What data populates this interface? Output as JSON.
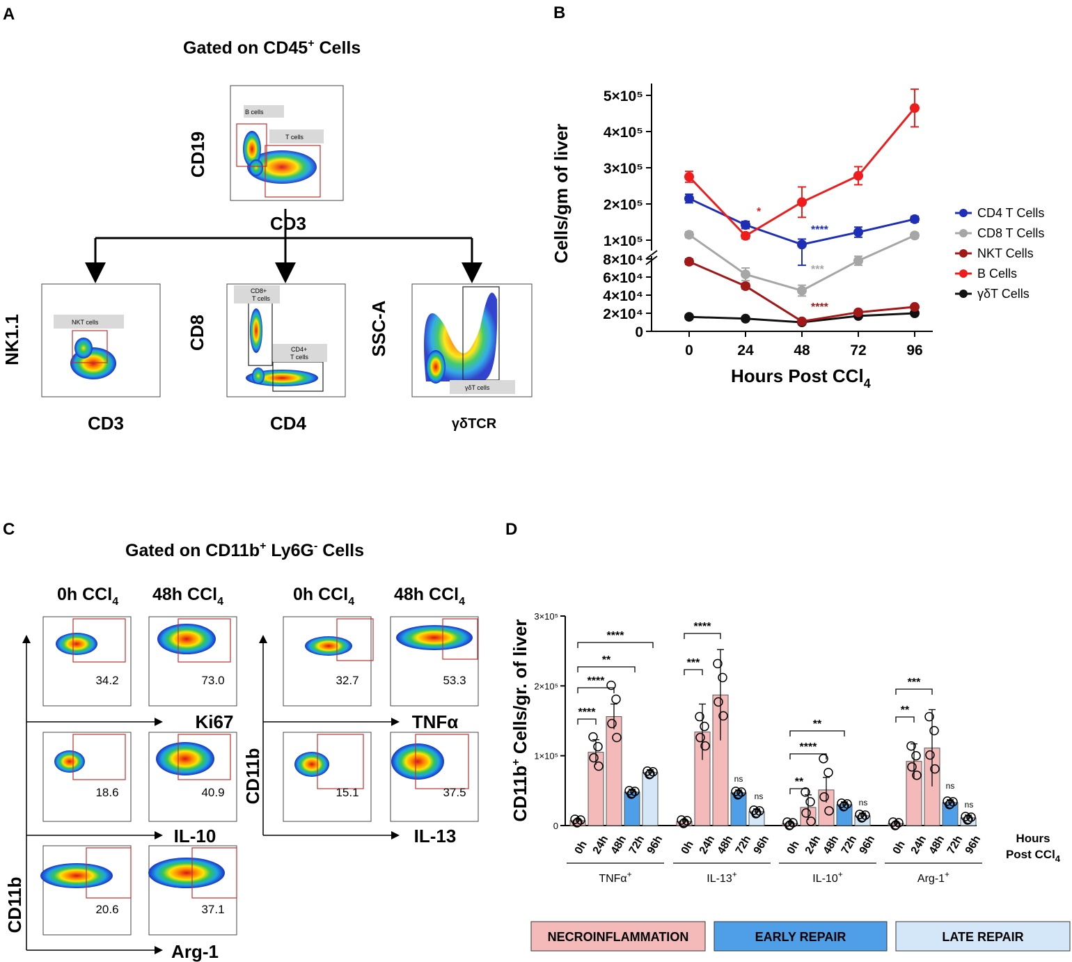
{
  "panels": {
    "a": "A",
    "b": "B",
    "c": "C",
    "d": "D"
  },
  "panel_a": {
    "title_main": "Gated on CD45",
    "title_sup": "+",
    "title_tail": " Cells",
    "top_plot": {
      "y": "CD19",
      "x": "CD3",
      "gate1": "B cells",
      "gate2": "T cells"
    },
    "plot_nk": {
      "y": "NK1.1",
      "x": "CD3",
      "gate1": "NKT cells"
    },
    "plot_cd8": {
      "y": "CD8",
      "x": "CD4",
      "gate1a": "CD8+",
      "gate1b": "T cells",
      "gate2a": "CD4+",
      "gate2b": "T cells"
    },
    "plot_gd": {
      "y": "SSC-A",
      "x": "γδTCR",
      "gate1": "γδT cells"
    }
  },
  "panel_c": {
    "title_a": "Gated on CD11b",
    "title_sup1": "+",
    "title_b": " Ly6G",
    "title_sup2": "-",
    "title_c": " Cells",
    "col_0h": "0h CCl",
    "col_48h": "48h CCl",
    "sub4": "4",
    "y_label": "CD11b",
    "markers": [
      "Ki67",
      "IL-10",
      "Arg-1",
      "TNFα",
      "IL-13"
    ],
    "values": {
      "ki67_0h": "34.2",
      "ki67_48h": "73.0",
      "il10_0h": "18.6",
      "il10_48h": "40.9",
      "arg1_0h": "20.6",
      "arg1_48h": "37.1",
      "tnfa_0h": "32.7",
      "tnfa_48h": "53.3",
      "il13_0h": "15.1",
      "il13_48h": "37.5"
    }
  },
  "colors": {
    "cd4": "#1f2fb5",
    "cd8": "#a6a6a6",
    "nkt": "#a01818",
    "b": "#ee1c1c",
    "gd": "#111111",
    "necro": "#f4b9b9",
    "early": "#4f9fe8",
    "late": "#d4e7f8"
  },
  "chart_data": [
    {
      "type": "line",
      "title": "",
      "xlabel": "Hours Post CCl4",
      "ylabel": "Cells/gm of liver",
      "x": [
        0,
        24,
        48,
        72,
        96
      ],
      "y_ticks_upper": [
        "1×10⁵",
        "2×10⁵",
        "3×10⁵",
        "4×10⁵",
        "5×10⁵"
      ],
      "y_ticks_lower": [
        "0",
        "2×10⁴",
        "4×10⁴",
        "6×10⁴",
        "8×10⁴"
      ],
      "x_ticks": [
        "0",
        "24",
        "48",
        "72",
        "96"
      ],
      "xlabel_main": "Hours Post CCl",
      "xlabel_sub": "4",
      "series": [
        {
          "name": "CD4 T Cells",
          "values": [
            215000,
            142000,
            88000,
            122000,
            158000
          ],
          "err": [
            12000,
            10000,
            15000,
            14000,
            8000
          ]
        },
        {
          "name": "CD8 T Cells",
          "values": [
            115000,
            63000,
            45000,
            78000,
            113000
          ],
          "err": [
            8000,
            7000,
            6000,
            5000,
            7000
          ]
        },
        {
          "name": "NKT Cells",
          "values": [
            77000,
            50000,
            11000,
            21000,
            27000
          ],
          "err": [
            3000,
            3000,
            2000,
            2000,
            2000
          ]
        },
        {
          "name": "B Cells",
          "values": [
            275000,
            112000,
            205000,
            278000,
            465000
          ],
          "err": [
            15000,
            8000,
            42000,
            25000,
            52000
          ]
        },
        {
          "name": "γδT Cells",
          "values": [
            16000,
            14000,
            10000,
            17000,
            20000
          ],
          "err": [
            1000,
            1000,
            1000,
            1000,
            1000
          ]
        }
      ],
      "annotations": [
        "*",
        "****",
        "***",
        "****"
      ]
    },
    {
      "type": "bar",
      "title": "",
      "ylabel_main": "CD11b",
      "ylabel_sup": "+",
      "ylabel_tail": " Cells/gr. of liver",
      "y_ticks": [
        "0",
        "1×10⁵",
        "2×10⁵",
        "3×10⁵"
      ],
      "ylim": [
        0,
        300000
      ],
      "categories": [
        "0h",
        "24h",
        "48h",
        "72h",
        "96h"
      ],
      "x_note_a": "Hours",
      "x_note_b": "Post CCl",
      "x_note_sub": "4",
      "groups": [
        {
          "name": "TNFα",
          "sup": "+",
          "values": [
            7000,
            105000,
            156000,
            48000,
            76000
          ],
          "sig": [
            "****",
            "****",
            "**",
            "****"
          ]
        },
        {
          "name": "IL-13",
          "sup": "+",
          "values": [
            6000,
            134000,
            187000,
            47000,
            20000
          ],
          "sig": [
            "***",
            "****",
            "ns",
            "ns"
          ]
        },
        {
          "name": "IL-10",
          "sup": "+",
          "values": [
            3000,
            26000,
            51000,
            30000,
            14000
          ],
          "sig": [
            "**",
            "****",
            "**",
            "ns"
          ]
        },
        {
          "name": "Arg-1",
          "sup": "+",
          "values": [
            3000,
            92000,
            111000,
            33000,
            11000
          ],
          "sig": [
            "**",
            "***",
            "ns",
            "ns"
          ]
        }
      ],
      "phases": [
        "NECROINFLAMMATION",
        "EARLY REPAIR",
        "LATE REPAIR"
      ]
    }
  ]
}
